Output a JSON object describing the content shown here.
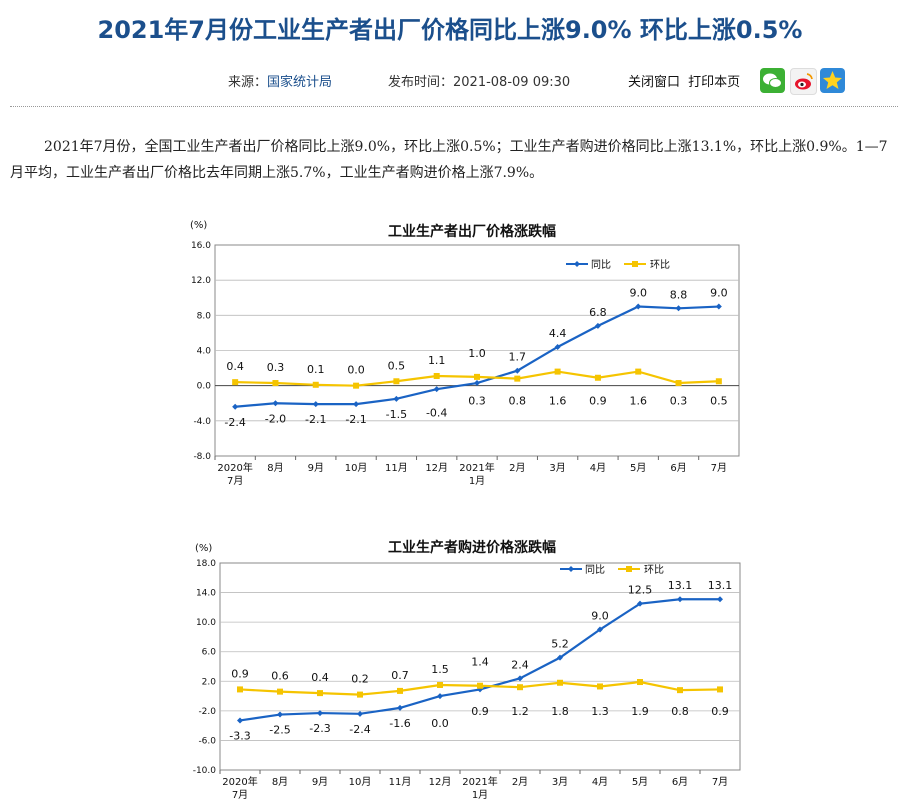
{
  "article": {
    "title": "2021年7月份工业生产者出厂价格同比上涨9.0% 环比上涨0.5%",
    "source_label": "来源：",
    "source_value": "国家统计局",
    "publish_label": "发布时间：",
    "publish_time": "2021-08-09 09:30",
    "close_window": "关闭窗口",
    "print_page": "打印本页",
    "share_icons": [
      "wechat-icon",
      "weibo-icon",
      "qzone-icon"
    ],
    "paragraph": "2021年7月份，全国工业生产者出厂价格同比上涨9.0%，环比上涨0.5%；工业生产者购进价格同比上涨13.1%，环比上涨0.9%。1—7月平均，工业生产者出厂价格比去年同期上涨5.7%，工业生产者购进价格上涨7.9%。"
  },
  "colors": {
    "title": "#1b4f8c",
    "yoy": "#1a63c4",
    "mom": "#f5c400",
    "grid": "#bbbbbb"
  },
  "chart_data": [
    {
      "type": "line",
      "title": "工业生产者出厂价格涨跌幅",
      "ylabel": "(%)",
      "ylim": [
        -8,
        16
      ],
      "yticks": [
        "16.0",
        "12.0",
        "8.0",
        "4.0",
        "0.0",
        "-4.0",
        "-8.0"
      ],
      "ytick_values": [
        16,
        12,
        8,
        4,
        0,
        -4,
        -8
      ],
      "categories": [
        [
          "2020年",
          "7月"
        ],
        [
          "8月"
        ],
        [
          "9月"
        ],
        [
          "10月"
        ],
        [
          "11月"
        ],
        [
          "12月"
        ],
        [
          "2021年",
          "1月"
        ],
        [
          "2月"
        ],
        [
          "3月"
        ],
        [
          "4月"
        ],
        [
          "5月"
        ],
        [
          "6月"
        ],
        [
          "7月"
        ]
      ],
      "legend": "top-right",
      "series": [
        {
          "name": "同比",
          "values": [
            -2.4,
            -2.0,
            -2.1,
            -2.1,
            -1.5,
            -0.4,
            0.3,
            1.7,
            4.4,
            6.8,
            9.0,
            8.8,
            9.0
          ],
          "labels": [
            "-2.4",
            "-2.0",
            "-2.1",
            "-2.1",
            "-1.5",
            "-0.4",
            "0.3",
            "1.7",
            "4.4",
            "6.8",
            "9.0",
            "8.8",
            "9.0"
          ]
        },
        {
          "name": "环比",
          "values": [
            0.4,
            0.3,
            0.1,
            0.0,
            0.5,
            1.1,
            1.0,
            0.8,
            1.6,
            0.9,
            1.6,
            0.3,
            0.5
          ],
          "labels": [
            "0.4",
            "0.3",
            "0.1",
            "0.0",
            "0.5",
            "1.1",
            "1.0",
            "0.8",
            "1.6",
            "0.9",
            "1.6",
            "0.3",
            "0.5"
          ]
        }
      ]
    },
    {
      "type": "line",
      "title": "工业生产者购进价格涨跌幅",
      "ylabel": "(%)",
      "ylim": [
        -10,
        18
      ],
      "yticks": [
        "18.0",
        "14.0",
        "10.0",
        "6.0",
        "2.0",
        "-2.0",
        "-6.0",
        "-10.0"
      ],
      "ytick_values": [
        18,
        14,
        10,
        6,
        2,
        -2,
        -6,
        -10
      ],
      "categories": [
        [
          "2020年",
          "7月"
        ],
        [
          "8月"
        ],
        [
          "9月"
        ],
        [
          "10月"
        ],
        [
          "11月"
        ],
        [
          "12月"
        ],
        [
          "2021年",
          "1月"
        ],
        [
          "2月"
        ],
        [
          "3月"
        ],
        [
          "4月"
        ],
        [
          "5月"
        ],
        [
          "6月"
        ],
        [
          "7月"
        ]
      ],
      "legend": "top-right",
      "series": [
        {
          "name": "同比",
          "values": [
            -3.3,
            -2.5,
            -2.3,
            -2.4,
            -1.6,
            0.0,
            0.9,
            2.4,
            5.2,
            9.0,
            12.5,
            13.1,
            13.1
          ],
          "labels": [
            "-3.3",
            "-2.5",
            "-2.3",
            "-2.4",
            "-1.6",
            "0.0",
            "0.9",
            "2.4",
            "5.2",
            "9.0",
            "12.5",
            "13.1",
            "13.1"
          ]
        },
        {
          "name": "环比",
          "values": [
            0.9,
            0.6,
            0.4,
            0.2,
            0.7,
            1.5,
            1.4,
            1.2,
            1.8,
            1.3,
            1.9,
            0.8,
            0.9
          ],
          "labels": [
            "0.9",
            "0.6",
            "0.4",
            "0.2",
            "0.7",
            "1.5",
            "1.4",
            "1.2",
            "1.8",
            "1.3",
            "1.9",
            "0.8",
            "0.9"
          ]
        }
      ]
    }
  ]
}
